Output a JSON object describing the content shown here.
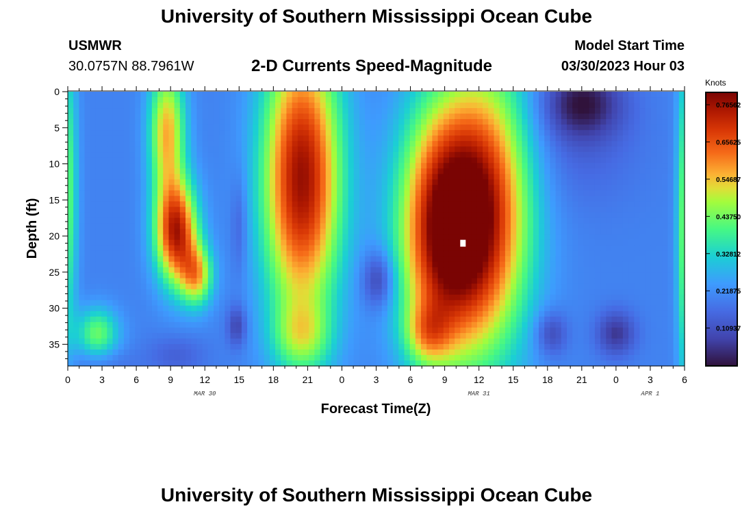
{
  "page": {
    "title": "University of Southern Mississippi Ocean Cube",
    "station_id": "USMWR",
    "coordinates": "30.0757N  88.7961W",
    "subtitle": "2-D Currents Speed-Magnitude",
    "model_start_label": "Model Start Time",
    "model_start_value": "03/30/2023 Hour 03",
    "bottom_title": "University of Southern Mississippi Ocean Cube"
  },
  "chart_data": {
    "type": "heatmap",
    "xlabel": "Forecast Time(Z)",
    "ylabel": "Depth (ft)",
    "x_tick_labels": [
      "0",
      "3",
      "6",
      "9",
      "12",
      "15",
      "18",
      "21",
      "0",
      "3",
      "6",
      "9",
      "12",
      "15",
      "18",
      "21",
      "0",
      "3",
      "6"
    ],
    "x_range_hours": [
      0,
      54
    ],
    "date_labels": [
      {
        "label": "MAR 30",
        "at_hour": 12
      },
      {
        "label": "MAR 31",
        "at_hour": 36
      },
      {
        "label": "APR 1",
        "at_hour": 51
      }
    ],
    "y_tick_labels": [
      "0",
      "5",
      "10",
      "15",
      "20",
      "25",
      "30",
      "35"
    ],
    "y_range_ft": [
      0,
      38
    ],
    "y_inverted": true,
    "colorbar": {
      "title": "Knots",
      "tick_labels": [
        "0.76562",
        "0.65625",
        "0.54687",
        "0.43750",
        "0.32812",
        "0.21875",
        "0.10937"
      ],
      "tick_values": [
        0.765625,
        0.65625,
        0.546875,
        0.4375,
        0.328125,
        0.21875,
        0.109375
      ],
      "range": [
        0.0,
        0.8
      ]
    },
    "marker": {
      "hour": 34.6,
      "depth_ft": 21.0,
      "color": "#ffffff"
    },
    "field_description": "Speed magnitude (knots) by forecast hour and depth",
    "speed_field": {
      "background": 0.2,
      "features": [
        {
          "x": 0.0,
          "y": 14,
          "sx": 0.6,
          "sy": 14,
          "a": 0.22
        },
        {
          "x": 2.6,
          "y": 33.5,
          "sx": 1.3,
          "sy": 2.5,
          "a": 0.23
        },
        {
          "x": 9.5,
          "y": 19.5,
          "sx": 1.3,
          "sy": 5.0,
          "a": 0.53
        },
        {
          "x": 8.7,
          "y": 5.5,
          "sx": 1.1,
          "sy": 6.5,
          "a": 0.36
        },
        {
          "x": 11.3,
          "y": 25.5,
          "sx": 1.0,
          "sy": 3.0,
          "a": 0.32
        },
        {
          "x": 20.5,
          "y": 12.0,
          "sx": 2.4,
          "sy": 13.5,
          "a": 0.57
        },
        {
          "x": 20.5,
          "y": 34.0,
          "sx": 1.8,
          "sy": 3.5,
          "a": 0.18
        },
        {
          "x": 33.0,
          "y": 19.0,
          "sx": 2.8,
          "sy": 12.0,
          "a": 0.59
        },
        {
          "x": 37.0,
          "y": 16.0,
          "sx": 2.8,
          "sy": 14.0,
          "a": 0.4
        },
        {
          "x": 31.5,
          "y": 33.5,
          "sx": 1.4,
          "sy": 3.0,
          "a": 0.2
        },
        {
          "x": 54.0,
          "y": 18.0,
          "sx": 0.5,
          "sy": 16.0,
          "a": 0.24
        },
        {
          "x": 45.0,
          "y": 1.5,
          "sx": 2.5,
          "sy": 3.5,
          "a": -0.18
        },
        {
          "x": 44.5,
          "y": 8.0,
          "sx": 4.0,
          "sy": 6.0,
          "a": -0.05
        },
        {
          "x": 3.0,
          "y": 37.5,
          "sx": 2.0,
          "sy": 1.5,
          "a": -0.04
        },
        {
          "x": 9.5,
          "y": 36.5,
          "sx": 1.8,
          "sy": 2.0,
          "a": -0.06
        },
        {
          "x": 14.8,
          "y": 32.5,
          "sx": 0.6,
          "sy": 2.0,
          "a": -0.12
        },
        {
          "x": 15.0,
          "y": 18.5,
          "sx": 0.5,
          "sy": 5.0,
          "a": -0.07
        },
        {
          "x": 27.2,
          "y": 26.0,
          "sx": 1.0,
          "sy": 2.8,
          "a": -0.15
        },
        {
          "x": 42.3,
          "y": 33.5,
          "sx": 1.0,
          "sy": 2.2,
          "a": -0.12
        },
        {
          "x": 48.0,
          "y": 33.5,
          "sx": 1.2,
          "sy": 2.2,
          "a": -0.14
        }
      ]
    }
  }
}
